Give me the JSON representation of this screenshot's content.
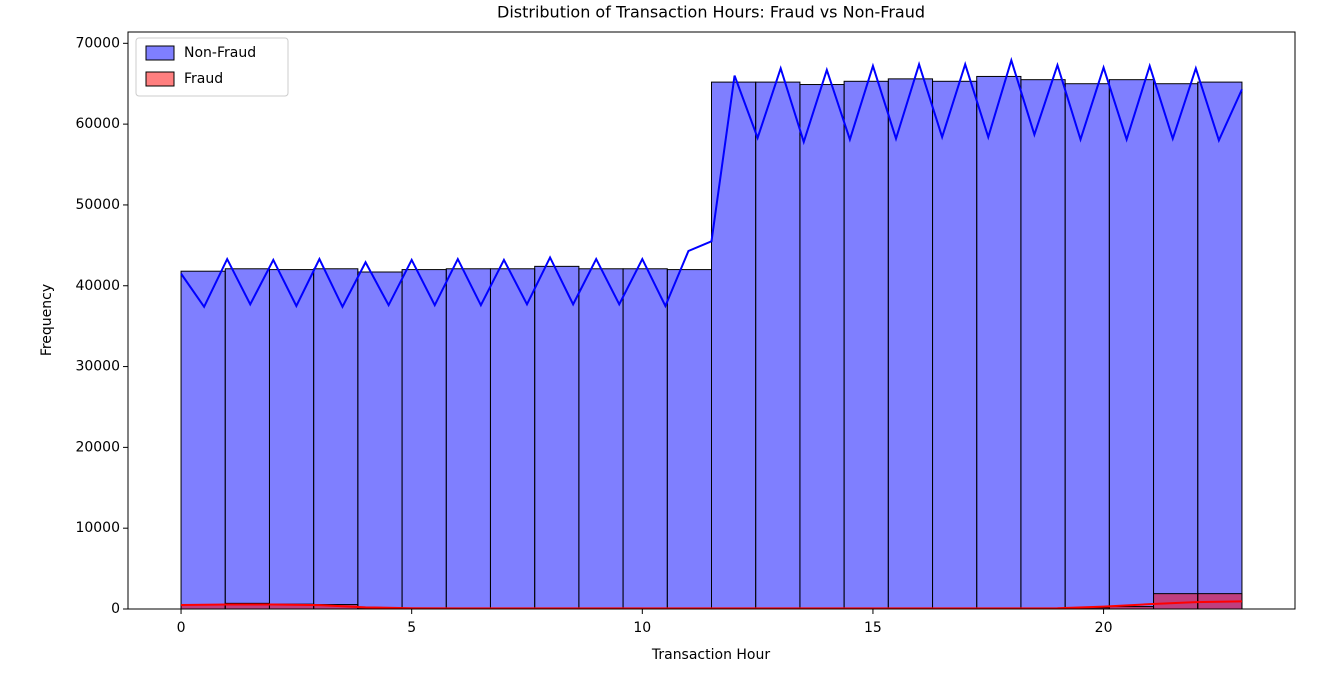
{
  "chart_data": {
    "type": "histogram",
    "title": "Distribution of Transaction Hours: Fraud vs Non-Fraud",
    "xlabel": "Transaction Hour",
    "ylabel": "Frequency",
    "bins": [
      0,
      0.958,
      1.917,
      2.875,
      3.833,
      4.792,
      5.75,
      6.708,
      7.667,
      8.625,
      9.583,
      10.542,
      11.5,
      12.458,
      13.417,
      14.375,
      15.333,
      16.292,
      17.25,
      18.208,
      19.167,
      20.125,
      21.083,
      22.042,
      23
    ],
    "series": [
      {
        "name": "Non-Fraud",
        "color": "blue",
        "alpha": 0.5,
        "values": [
          41800,
          42100,
          42000,
          42100,
          41700,
          42000,
          42100,
          42100,
          42400,
          42100,
          42100,
          42000,
          65200,
          65200,
          64900,
          65300,
          65600,
          65300,
          65900,
          65500,
          65000,
          65500,
          65000,
          65200
        ],
        "kde_x": [
          0,
          0.5,
          1,
          1.5,
          2,
          2.5,
          3,
          3.5,
          4,
          4.5,
          5,
          5.5,
          6,
          6.5,
          7,
          7.5,
          8,
          8.5,
          9,
          9.5,
          10,
          10.5,
          11,
          11.5,
          12,
          12.5,
          13,
          13.5,
          14,
          14.5,
          15,
          15.5,
          16,
          16.5,
          17,
          17.5,
          18,
          18.5,
          19,
          19.5,
          20,
          20.5,
          21,
          21.5,
          22,
          22.5,
          23
        ],
        "kde_values": [
          41500,
          37400,
          43300,
          37700,
          43200,
          37500,
          43300,
          37400,
          42900,
          37600,
          43200,
          37600,
          43300,
          37600,
          43200,
          37700,
          43500,
          37700,
          43300,
          37700,
          43300,
          37500,
          44300,
          45500,
          66000,
          58300,
          66900,
          57800,
          66700,
          58100,
          67200,
          58200,
          67400,
          58400,
          67400,
          58400,
          67900,
          58700,
          67300,
          58100,
          67000,
          58100,
          67200,
          58200,
          66900,
          58000,
          64300
        ]
      },
      {
        "name": "Fraud",
        "color": "red",
        "alpha": 0.5,
        "values": [
          500,
          700,
          600,
          550,
          150,
          100,
          100,
          100,
          100,
          100,
          100,
          100,
          100,
          100,
          100,
          100,
          100,
          100,
          100,
          100,
          150,
          300,
          1900,
          1900
        ],
        "kde_x": [
          0,
          1,
          2,
          3,
          4,
          5,
          6,
          7,
          8,
          9,
          10,
          11,
          12,
          13,
          14,
          15,
          16,
          17,
          18,
          19,
          20,
          21,
          22,
          23
        ],
        "kde_values": [
          500,
          550,
          550,
          480,
          200,
          100,
          80,
          80,
          80,
          80,
          80,
          80,
          80,
          80,
          80,
          80,
          80,
          80,
          80,
          100,
          300,
          600,
          850,
          950
        ]
      }
    ],
    "xlim": [
      -1.15,
      24.15
    ],
    "ylim": [
      0,
      71400
    ],
    "xticks": [
      0,
      5,
      10,
      15,
      20
    ],
    "yticks": [
      0,
      10000,
      20000,
      30000,
      40000,
      50000,
      60000,
      70000
    ],
    "legend": "upper left"
  }
}
